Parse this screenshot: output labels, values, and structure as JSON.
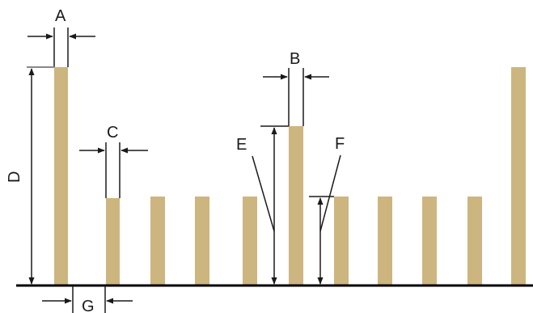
{
  "colors": {
    "bar": "#CDB57F",
    "line": "#1a1a1a",
    "ground": "#000000",
    "background": "#ffffff"
  },
  "labels": {
    "a": "A",
    "b": "B",
    "c": "C",
    "d": "D",
    "e": "E",
    "f": "F",
    "g": "G"
  }
}
